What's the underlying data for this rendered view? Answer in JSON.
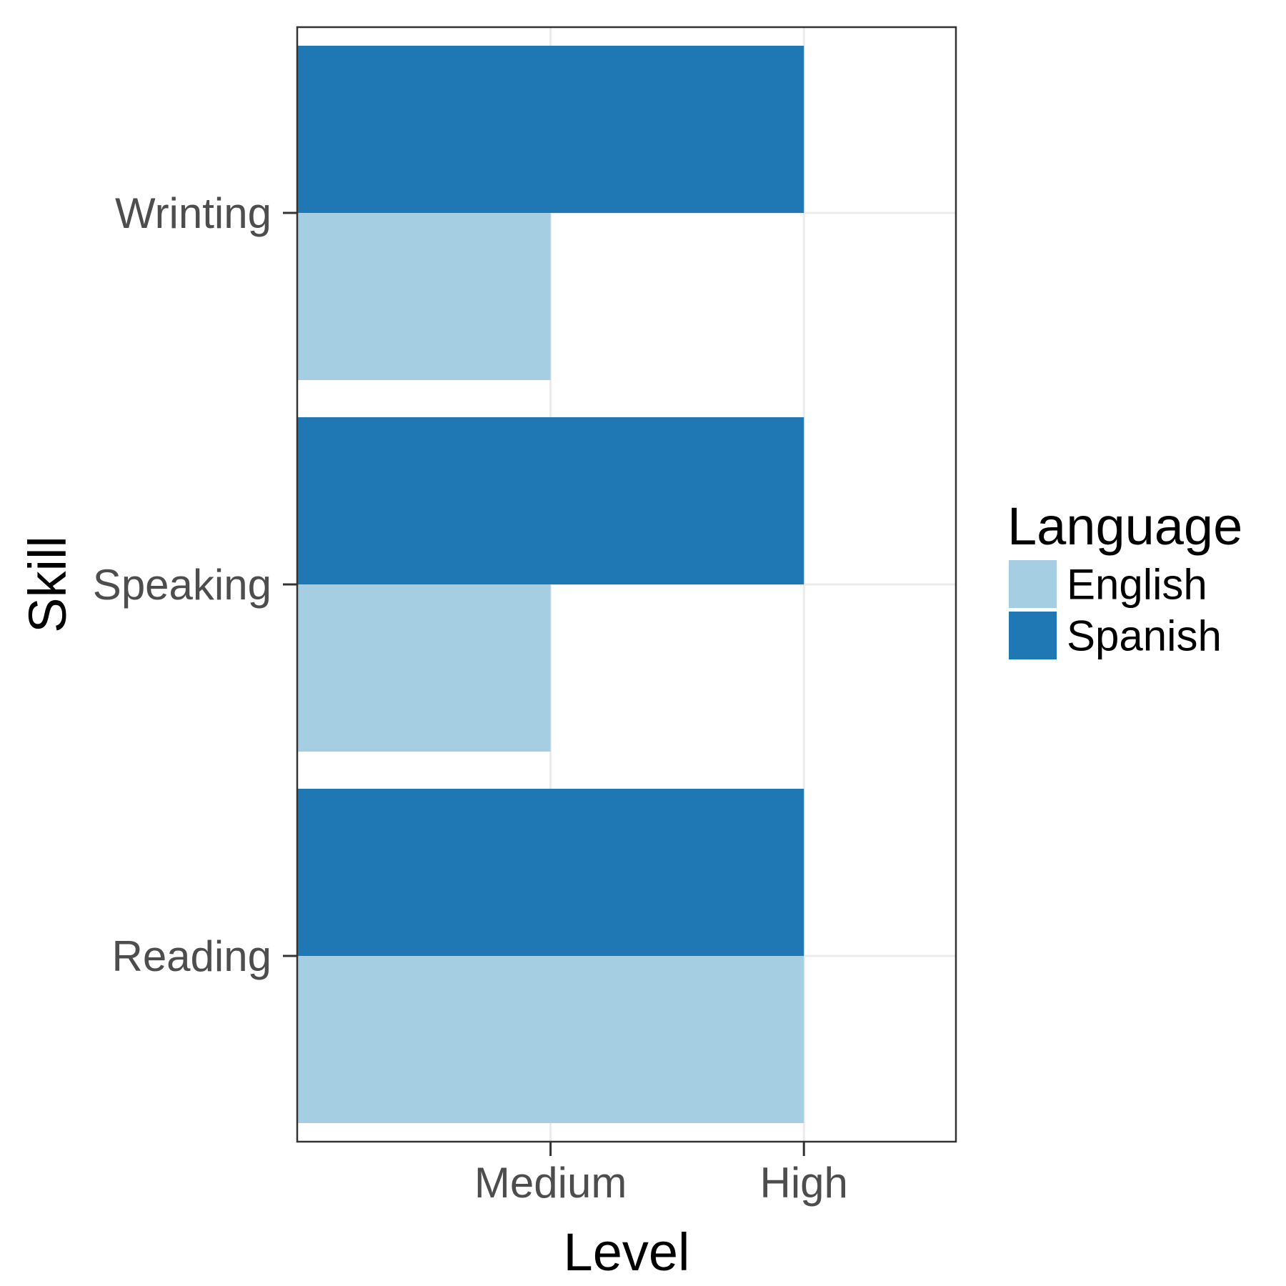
{
  "chart_data": {
    "type": "bar",
    "orientation": "horizontal",
    "xlabel": "Level",
    "ylabel": "Skill",
    "x_ticks": [
      "Medium",
      "High"
    ],
    "x_levels": [
      "",
      "Medium",
      "High"
    ],
    "xlim": [
      0,
      2.6
    ],
    "categories": [
      "Reading",
      "Speaking",
      "Wrinting"
    ],
    "series": [
      {
        "name": "English",
        "color": "#a6cee3",
        "values": [
          2,
          1,
          1
        ]
      },
      {
        "name": "Spanish",
        "color": "#1f78b4",
        "values": [
          2,
          2,
          2
        ]
      }
    ],
    "legend": {
      "title": "Language",
      "position": "right"
    },
    "grid": true
  }
}
